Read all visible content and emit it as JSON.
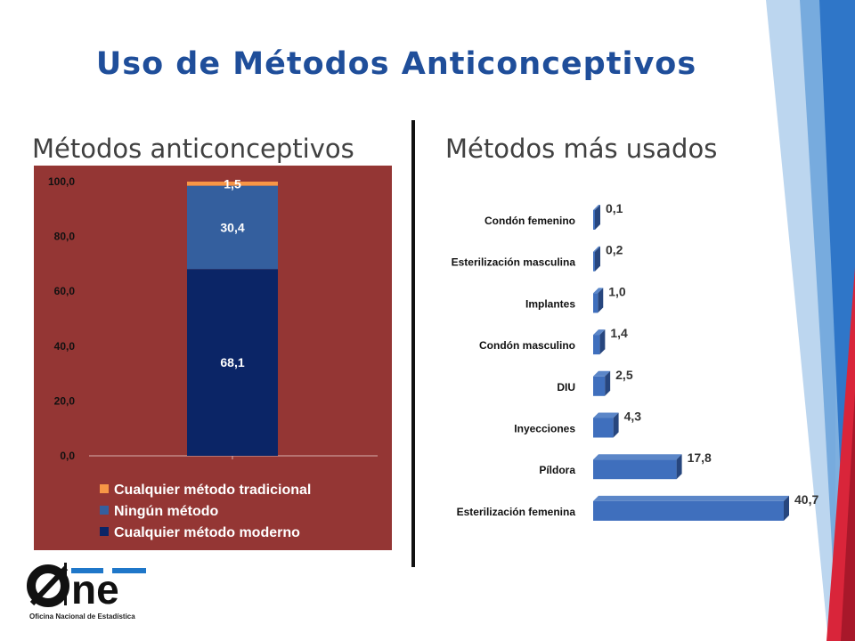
{
  "page": {
    "title": "Uso de Métodos Anticonceptivos",
    "left_subtitle": "Métodos anticonceptivos",
    "right_subtitle": "Métodos más usados"
  },
  "logo": {
    "text": "Øne",
    "caption": "Oficina Nacional de Estadística"
  },
  "colors": {
    "title": "#1f4e9a",
    "left_background": "#943634",
    "modern": "#0b2566",
    "none": "#345f9e",
    "traditional": "#f79646",
    "bar_right": "#3f6fbd",
    "bar_right_top": "#5b86c8",
    "bar_right_side": "#27467e"
  },
  "chart_data": [
    {
      "type": "bar",
      "stacked": true,
      "categories": [
        ""
      ],
      "series": [
        {
          "name": "Cualquier método moderno",
          "values": [
            68.1
          ],
          "labels": [
            "68,1"
          ],
          "color": "#0b2566"
        },
        {
          "name": "Ningún método",
          "values": [
            30.4
          ],
          "labels": [
            "30,4"
          ],
          "color": "#345f9e"
        },
        {
          "name": "Cualquier método tradicional",
          "values": [
            1.5
          ],
          "labels": [
            "1,5"
          ],
          "color": "#f79646"
        }
      ],
      "legend_order": [
        "Cualquier método tradicional",
        "Ningún método",
        "Cualquier método moderno"
      ],
      "ylim": [
        0,
        100
      ],
      "yticks": [
        "0,0",
        "20,0",
        "40,0",
        "60,0",
        "80,0",
        "100,0"
      ],
      "legend": "bottom",
      "grid": false
    },
    {
      "type": "bar",
      "orientation": "horizontal",
      "categories": [
        "Condón femenino",
        "Esterilización masculina",
        "Implantes",
        "Condón masculino",
        "DIU",
        "Inyecciones",
        "Píldora",
        "Esterilización femenina"
      ],
      "values": [
        0.1,
        0.2,
        1.0,
        1.4,
        2.5,
        4.3,
        17.8,
        40.7
      ],
      "labels": [
        "0,1",
        "0,2",
        "1,0",
        "1,4",
        "2,5",
        "4,3",
        "17,8",
        "40,7"
      ],
      "xlim": [
        0,
        40.7
      ],
      "grid": false,
      "legend": "none"
    }
  ]
}
